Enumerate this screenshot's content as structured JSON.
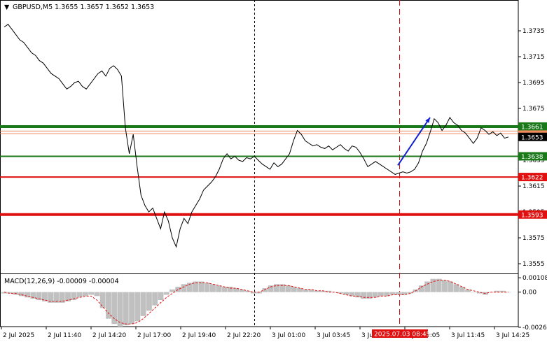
{
  "window": {
    "symbol_title": "GBPUSD,M5  1.3655 1.3657 1.3652 1.3653",
    "collapse_glyph": "▼"
  },
  "colors": {
    "background": "#ffffff",
    "price_line": "#000000",
    "green_level": "#1a7a1a",
    "red_level": "#e01010",
    "current_price_tag": "#000000",
    "orange_level": "#f08a5d",
    "blue_arrow": "#1020d0",
    "macd_hist": "#c0c0c0",
    "macd_signal": "#e01010",
    "cursor_line": "#e01010"
  },
  "chart_data": [
    {
      "type": "line",
      "title": "GBPUSD,M5  1.3655 1.3657 1.3652 1.3653",
      "ylim": [
        1.3548,
        1.3748
      ],
      "y_ticks": [
        "1.3735",
        "1.3715",
        "1.3695",
        "1.3675",
        "1.3655",
        "1.3635",
        "1.3615",
        "1.3595",
        "1.3575",
        "1.3555"
      ],
      "x_ticks": [
        "2 Jul 2025",
        "2 Jul 11:40",
        "2 Jul 14:20",
        "2 Jul 17:00",
        "2 Jul 19:40",
        "2 Jul 22:20",
        "3 Jul 01:00",
        "3 Jul 03:45",
        "3 Jul 06:25",
        "3 Jul 09:05",
        "3 Jul 11:45",
        "3 Jul 14:25"
      ],
      "price_series": [
        1.3738,
        1.374,
        1.3736,
        1.3732,
        1.3728,
        1.3726,
        1.3722,
        1.3718,
        1.3716,
        1.3712,
        1.371,
        1.3706,
        1.3702,
        1.37,
        1.3698,
        1.3694,
        1.369,
        1.3692,
        1.3695,
        1.3696,
        1.3692,
        1.369,
        1.3694,
        1.3698,
        1.3702,
        1.3704,
        1.37,
        1.3706,
        1.3708,
        1.3705,
        1.37,
        1.366,
        1.364,
        1.3655,
        1.363,
        1.3608,
        1.36,
        1.3595,
        1.3598,
        1.359,
        1.3582,
        1.3595,
        1.3588,
        1.3575,
        1.3568,
        1.3582,
        1.359,
        1.3586,
        1.3595,
        1.36,
        1.3605,
        1.3612,
        1.3615,
        1.3618,
        1.3622,
        1.3628,
        1.3636,
        1.364,
        1.3636,
        1.3638,
        1.3635,
        1.3634,
        1.3637,
        1.3636,
        1.3638,
        1.3635,
        1.3632,
        1.363,
        1.3628,
        1.3633,
        1.363,
        1.3632,
        1.3636,
        1.364,
        1.365,
        1.3658,
        1.3655,
        1.365,
        1.3648,
        1.3646,
        1.3647,
        1.3645,
        1.3644,
        1.3646,
        1.3643,
        1.3645,
        1.3647,
        1.3644,
        1.3642,
        1.3646,
        1.3645,
        1.3641,
        1.3636,
        1.363,
        1.3632,
        1.3634,
        1.3632,
        1.363,
        1.3628,
        1.3626,
        1.3624,
        1.3625,
        1.3626,
        1.3625,
        1.3626,
        1.3628,
        1.3633,
        1.3642,
        1.3648,
        1.3657,
        1.3667,
        1.3664,
        1.3658,
        1.3662,
        1.3668,
        1.3664,
        1.3662,
        1.3658,
        1.3656,
        1.3652,
        1.3648,
        1.3652,
        1.366,
        1.3658,
        1.3655,
        1.3657,
        1.3654,
        1.3656,
        1.3652,
        1.3653
      ],
      "horizontal_levels": [
        {
          "label": "1.3661",
          "value": 1.3661,
          "color": "green",
          "thick": true
        },
        {
          "label": "1.3638",
          "value": 1.3638,
          "color": "green",
          "thick": false
        },
        {
          "label": "1.3622",
          "value": 1.3622,
          "color": "red",
          "thick": false
        },
        {
          "label": "1.3593",
          "value": 1.3593,
          "color": "red",
          "thick": true
        }
      ],
      "orange_levels": [
        1.36575,
        1.36555
      ],
      "current_price_label": "1.3653",
      "current_price": 1.3653,
      "arrow": {
        "from": 1.3631,
        "to": 1.3668
      },
      "cursor_time_label": "2025.07.03 08:45"
    },
    {
      "type": "bar",
      "title": "MACD(12,26,9) -0.00009 -0.00004",
      "ylim": [
        -0.0026,
        0.0013
      ],
      "y_ticks": [
        "0.00108",
        "0.00",
        "-0.00265"
      ],
      "histogram": [
        -0.0001,
        -0.0001,
        -0.0002,
        -0.0003,
        -0.0004,
        -0.0005,
        -0.0006,
        -0.0007,
        -0.0008,
        -0.0008,
        -0.0008,
        -0.0007,
        -0.0006,
        -0.0004,
        -0.0003,
        -0.0002,
        -0.0003,
        -0.0012,
        -0.002,
        -0.0024,
        -0.0026,
        -0.0025,
        -0.0024,
        -0.0022,
        -0.0018,
        -0.0014,
        -0.001,
        -0.0006,
        -0.0002,
        0.0002,
        0.0004,
        0.0006,
        0.0007,
        0.0008,
        0.0008,
        0.0007,
        0.0006,
        0.0005,
        0.0004,
        0.0004,
        0.0003,
        0.0002,
        0.0001,
        -0.0001,
        -0.0001,
        0.0003,
        0.0005,
        0.0006,
        0.0006,
        0.0005,
        0.0004,
        0.0003,
        0.0002,
        0.0002,
        0.0001,
        0.0001,
        0.0001,
        0.0,
        -0.0001,
        -0.0002,
        -0.0003,
        -0.0004,
        -0.0005,
        -0.0005,
        -0.0004,
        -0.0003,
        -0.0003,
        -0.0002,
        -0.0002,
        -0.0002,
        -0.0001,
        0.0002,
        0.0005,
        0.0008,
        0.001,
        0.001,
        0.0009,
        0.0008,
        0.0006,
        0.0004,
        0.0002,
        0.0,
        -0.0001,
        -0.0002,
        0.0,
        0.0001,
        0.0001,
        0.0
      ],
      "signal": [
        0.0,
        -0.0001,
        -0.0001,
        -0.0002,
        -0.0003,
        -0.0004,
        -0.0005,
        -0.0006,
        -0.0007,
        -0.0007,
        -0.0007,
        -0.0006,
        -0.0005,
        -0.0004,
        -0.0003,
        -0.0003,
        -0.0006,
        -0.0011,
        -0.0016,
        -0.002,
        -0.0023,
        -0.0024,
        -0.0024,
        -0.0023,
        -0.002,
        -0.0016,
        -0.0012,
        -0.0008,
        -0.0004,
        -0.0001,
        0.0002,
        0.0004,
        0.0006,
        0.0007,
        0.0007,
        0.0007,
        0.0006,
        0.0005,
        0.0004,
        0.0003,
        0.0003,
        0.0002,
        0.0001,
        0.0,
        0.0,
        0.0002,
        0.0004,
        0.0005,
        0.0005,
        0.0005,
        0.0004,
        0.0003,
        0.0002,
        0.0002,
        0.0001,
        0.0001,
        0.0,
        0.0,
        -0.0001,
        -0.0002,
        -0.0003,
        -0.0003,
        -0.0004,
        -0.0004,
        -0.0004,
        -0.0003,
        -0.0003,
        -0.0002,
        -0.0002,
        -0.0002,
        -0.0001,
        0.0001,
        0.0004,
        0.0006,
        0.0008,
        0.0009,
        0.0009,
        0.0008,
        0.0006,
        0.0004,
        0.0002,
        0.0001,
        0.0,
        -0.0001,
        0.0,
        0.0,
        0.0,
        0.0
      ]
    }
  ]
}
